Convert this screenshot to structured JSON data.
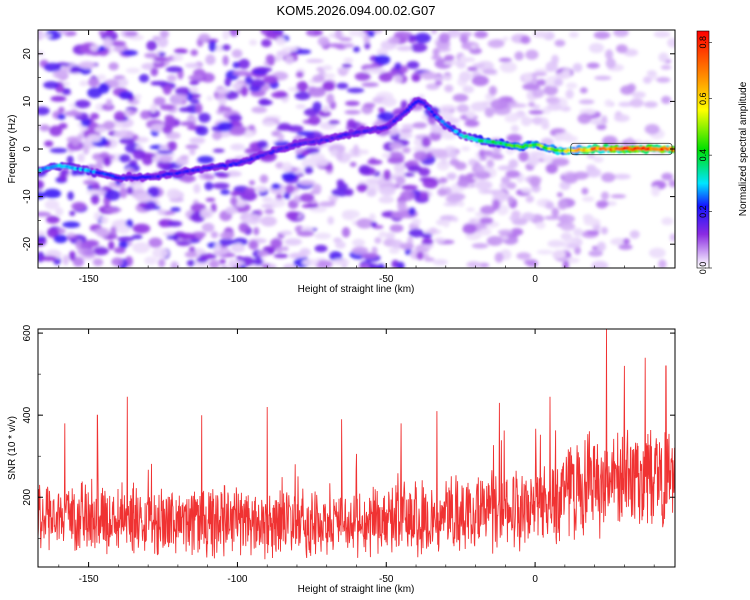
{
  "chart_data": [
    {
      "type": "heatmap",
      "title": "KOM5.2026.094.00.02.G07",
      "xlabel": "Height of straight line (km)",
      "ylabel": "Frequency (Hz)",
      "xlim": [
        -167,
        47
      ],
      "ylim": [
        -25,
        25
      ],
      "x_ticks": [
        -150,
        -100,
        -50,
        0
      ],
      "x_tick_labels": [
        "-150",
        "-100",
        "-50",
        "0"
      ],
      "y_ticks": [
        20,
        10,
        0,
        -10,
        -20
      ],
      "y_tick_labels": [
        "20",
        "10",
        "0",
        "-10",
        "-20"
      ],
      "colorbar": {
        "label": "Normalized spectral amplitude",
        "range": [
          0,
          0.84
        ],
        "ticks": [
          0,
          0.2,
          0.4,
          0.6,
          0.8
        ],
        "tick_labels": [
          "0.0",
          "0.2",
          "0.4",
          "0.6",
          "0.8"
        ],
        "colors": [
          "#ffffff",
          "#e6d2fa",
          "#8a2be2",
          "#1414ff",
          "#00e5ff",
          "#00e000",
          "#ffff00",
          "#ff8c00",
          "#ff0000"
        ]
      },
      "ridge": {
        "x": [
          -167,
          -160,
          -150,
          -140,
          -130,
          -120,
          -110,
          -100,
          -90,
          -80,
          -70,
          -60,
          -55,
          -50,
          -45,
          -40,
          -38,
          -35,
          -30,
          -25,
          -20,
          -15,
          -10,
          -5,
          0,
          5,
          10,
          20,
          30,
          40,
          46
        ],
        "y": [
          -4.5,
          -3.5,
          -4.5,
          -6,
          -6,
          -5,
          -4,
          -3,
          -1,
          1,
          2,
          3.5,
          4,
          4.5,
          7,
          10,
          10,
          8,
          5,
          3,
          2,
          1.5,
          1,
          0.5,
          1,
          0,
          -0.5,
          0,
          0,
          0,
          0
        ],
        "amplitude": [
          0.3,
          0.3,
          0.28,
          0.22,
          0.2,
          0.2,
          0.2,
          0.2,
          0.18,
          0.18,
          0.18,
          0.18,
          0.18,
          0.18,
          0.2,
          0.22,
          0.22,
          0.24,
          0.26,
          0.3,
          0.34,
          0.38,
          0.42,
          0.45,
          0.48,
          0.5,
          0.55,
          0.7,
          0.8,
          0.82,
          0.8
        ]
      }
    },
    {
      "type": "line",
      "xlabel": "Height of straight line (km)",
      "ylabel": "SNR (10 * v/v)",
      "xlim": [
        -167,
        47
      ],
      "ylim": [
        30,
        610
      ],
      "x_ticks": [
        -150,
        -100,
        -50,
        0
      ],
      "x_tick_labels": [
        "-150",
        "-100",
        "-50",
        "0"
      ],
      "y_ticks": [
        600,
        400,
        200
      ],
      "y_tick_labels": [
        "600",
        "400",
        "200"
      ],
      "color": "#f03232",
      "trend": {
        "x": [
          -167,
          -120,
          -60,
          -20,
          0,
          20,
          47
        ],
        "mean": [
          150,
          140,
          135,
          160,
          185,
          230,
          255
        ],
        "spread": [
          80,
          80,
          75,
          90,
          100,
          115,
          120
        ]
      },
      "peaks": [
        {
          "x": -158,
          "y": 380
        },
        {
          "x": -147,
          "y": 400
        },
        {
          "x": -137,
          "y": 445
        },
        {
          "x": -112,
          "y": 400
        },
        {
          "x": -90,
          "y": 420
        },
        {
          "x": -65,
          "y": 390
        },
        {
          "x": -45,
          "y": 380
        },
        {
          "x": -33,
          "y": 410
        },
        {
          "x": -12,
          "y": 430
        },
        {
          "x": 5,
          "y": 445
        },
        {
          "x": 24,
          "y": 610
        },
        {
          "x": 30,
          "y": 520
        },
        {
          "x": 37,
          "y": 540
        },
        {
          "x": 44,
          "y": 520
        }
      ]
    }
  ]
}
